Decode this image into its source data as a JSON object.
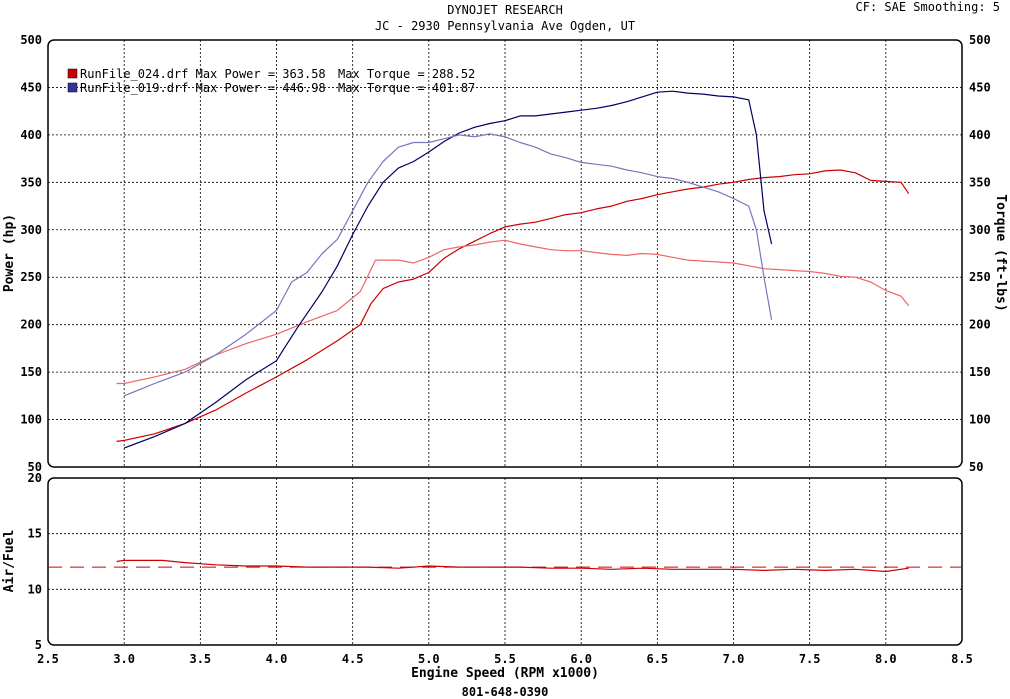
{
  "header": {
    "title": "DYNOJET RESEARCH",
    "subtitle": "JC - 2930 Pennsylvania Ave Ogden, UT",
    "settings": "CF: SAE  Smoothing: 5"
  },
  "footer": {
    "phone": "801-648-0390"
  },
  "colors": {
    "run024": "#cc0000",
    "run019": "#000066",
    "run024_torque": "#ee6666",
    "run019_torque": "#7777bb",
    "grid": "#000000",
    "afr_ref": "#cc0000"
  },
  "chart_data": [
    {
      "type": "line",
      "title": "DYNOJET RESEARCH",
      "xlabel": "Engine Speed (RPM x1000)",
      "ylabel": "Power (hp)",
      "y2label": "Torque (ft-lbs)",
      "xlim": [
        2.5,
        8.5
      ],
      "ylim": [
        50,
        500
      ],
      "y2lim": [
        50,
        500
      ],
      "xticks": [
        "2.5",
        "3.0",
        "3.5",
        "4.0",
        "4.5",
        "5.0",
        "5.5",
        "6.0",
        "6.5",
        "7.0",
        "7.5",
        "8.0",
        "8.5"
      ],
      "yticks": [
        "50",
        "100",
        "150",
        "200",
        "250",
        "300",
        "350",
        "400",
        "450",
        "500"
      ],
      "grid": true,
      "legend": [
        {
          "marker": "red",
          "text": "RunFile_024.drf Max Power = 363.58",
          "torque_text": "Max Torque = 288.52"
        },
        {
          "marker": "blue",
          "text": "RunFile_019.drf Max Power = 446.98",
          "torque_text": "Max Torque = 401.87"
        }
      ],
      "series": [
        {
          "name": "RunFile_024.drf",
          "measure": "Power",
          "color": "#cc0000",
          "x": [
            2.95,
            3.0,
            3.2,
            3.4,
            3.6,
            3.8,
            4.0,
            4.2,
            4.4,
            4.55,
            4.62,
            4.7,
            4.8,
            4.9,
            5.0,
            5.1,
            5.2,
            5.3,
            5.4,
            5.5,
            5.6,
            5.7,
            5.8,
            5.9,
            6.0,
            6.1,
            6.2,
            6.3,
            6.4,
            6.5,
            6.6,
            6.7,
            6.8,
            6.9,
            7.0,
            7.1,
            7.2,
            7.3,
            7.4,
            7.5,
            7.6,
            7.7,
            7.8,
            7.9,
            8.0,
            8.1,
            8.15
          ],
          "y": [
            77,
            78,
            85,
            96,
            110,
            128,
            145,
            163,
            183,
            200,
            222,
            238,
            245,
            248,
            255,
            270,
            280,
            288,
            296,
            303,
            306,
            308,
            312,
            316,
            318,
            322,
            325,
            330,
            333,
            337,
            340,
            343,
            345,
            348,
            350,
            353,
            355,
            356,
            358,
            359,
            362,
            363,
            360,
            352,
            351,
            350,
            338
          ]
        },
        {
          "name": "RunFile_024.drf",
          "measure": "Torque",
          "color": "#ee6666",
          "x": [
            2.95,
            3.0,
            3.2,
            3.4,
            3.6,
            3.8,
            4.0,
            4.2,
            4.4,
            4.55,
            4.65,
            4.8,
            4.9,
            5.0,
            5.1,
            5.2,
            5.3,
            5.4,
            5.5,
            5.6,
            5.7,
            5.8,
            5.9,
            6.0,
            6.1,
            6.2,
            6.3,
            6.4,
            6.5,
            6.6,
            6.7,
            6.8,
            6.9,
            7.0,
            7.1,
            7.2,
            7.3,
            7.4,
            7.5,
            7.6,
            7.7,
            7.8,
            7.9,
            8.0,
            8.1,
            8.15
          ],
          "y": [
            138,
            138,
            145,
            153,
            168,
            180,
            190,
            203,
            215,
            235,
            268,
            268,
            265,
            271,
            279,
            282,
            284,
            287,
            289,
            285,
            282,
            279,
            278,
            278,
            276,
            274,
            273,
            275,
            274,
            271,
            268,
            267,
            266,
            265,
            262,
            259,
            258,
            257,
            256,
            254,
            251,
            250,
            245,
            236,
            230,
            220
          ]
        },
        {
          "name": "RunFile_019.drf",
          "measure": "Power",
          "color": "#000066",
          "x": [
            3.0,
            3.2,
            3.4,
            3.6,
            3.8,
            4.0,
            4.05,
            4.15,
            4.3,
            4.4,
            4.5,
            4.6,
            4.7,
            4.8,
            4.9,
            5.0,
            5.1,
            5.2,
            5.3,
            5.4,
            5.5,
            5.6,
            5.7,
            5.8,
            5.9,
            6.0,
            6.1,
            6.2,
            6.3,
            6.4,
            6.5,
            6.6,
            6.7,
            6.8,
            6.9,
            7.0,
            7.1,
            7.15,
            7.2,
            7.25
          ],
          "y": [
            70,
            82,
            96,
            118,
            142,
            162,
            175,
            200,
            235,
            262,
            295,
            325,
            350,
            365,
            372,
            382,
            393,
            402,
            408,
            412,
            415,
            420,
            420,
            422,
            424,
            426,
            428,
            431,
            435,
            440,
            445,
            446,
            444,
            443,
            441,
            440,
            437,
            400,
            320,
            285
          ]
        },
        {
          "name": "RunFile_019.drf",
          "measure": "Torque",
          "color": "#7777bb",
          "x": [
            3.0,
            3.2,
            3.4,
            3.6,
            3.8,
            4.0,
            4.1,
            4.2,
            4.3,
            4.4,
            4.5,
            4.6,
            4.7,
            4.8,
            4.9,
            5.0,
            5.1,
            5.2,
            5.3,
            5.4,
            5.5,
            5.6,
            5.7,
            5.8,
            5.9,
            6.0,
            6.1,
            6.2,
            6.3,
            6.4,
            6.5,
            6.6,
            6.7,
            6.8,
            6.9,
            7.0,
            7.1,
            7.15,
            7.2,
            7.25
          ],
          "y": [
            125,
            138,
            150,
            168,
            190,
            215,
            245,
            255,
            275,
            290,
            320,
            350,
            372,
            387,
            392,
            392,
            396,
            400,
            398,
            401,
            398,
            392,
            387,
            380,
            376,
            371,
            369,
            367,
            363,
            360,
            356,
            354,
            350,
            345,
            340,
            333,
            325,
            300,
            250,
            205
          ]
        }
      ]
    },
    {
      "type": "line",
      "xlabel": "Engine Speed (RPM x1000)",
      "ylabel": "Air/Fuel",
      "xlim": [
        2.5,
        8.5
      ],
      "ylim": [
        5,
        20
      ],
      "xticks": [
        "2.5",
        "3.0",
        "3.5",
        "4.0",
        "4.5",
        "5.0",
        "5.5",
        "6.0",
        "6.5",
        "7.0",
        "7.5",
        "8.0",
        "8.5"
      ],
      "yticks": [
        "5",
        "10",
        "15",
        "20"
      ],
      "grid": true,
      "reference_line": {
        "y": 12,
        "style": "dashed",
        "color": "#cc0000"
      },
      "series": [
        {
          "name": "RunFile_024.drf",
          "measure": "Air/Fuel",
          "color": "#cc0000",
          "x": [
            2.95,
            3.0,
            3.25,
            3.4,
            3.6,
            3.8,
            4.0,
            4.2,
            4.4,
            4.6,
            4.8,
            5.0,
            5.2,
            5.4,
            5.6,
            5.8,
            6.0,
            6.2,
            6.4,
            6.6,
            6.8,
            7.0,
            7.2,
            7.4,
            7.6,
            7.8,
            8.0,
            8.15
          ],
          "y": [
            12.5,
            12.6,
            12.6,
            12.4,
            12.2,
            12.1,
            12.1,
            12.0,
            12.0,
            12.0,
            11.9,
            12.1,
            12.0,
            12.0,
            12.0,
            11.9,
            11.9,
            11.8,
            11.9,
            11.8,
            11.8,
            11.8,
            11.7,
            11.8,
            11.7,
            11.8,
            11.6,
            11.9
          ]
        }
      ]
    }
  ]
}
